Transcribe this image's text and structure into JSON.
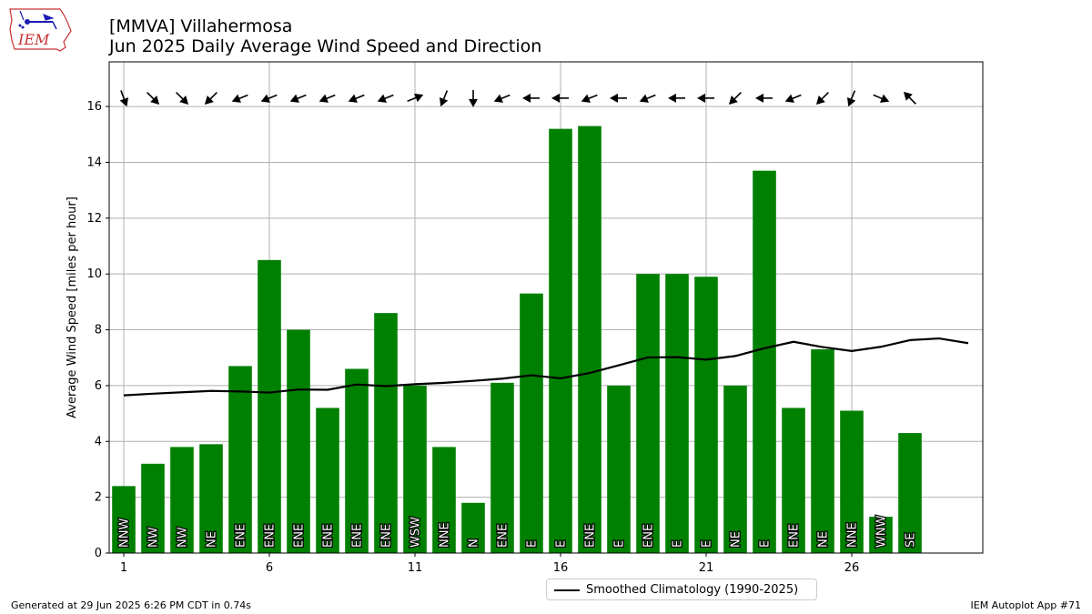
{
  "logo": {
    "text": "IEM"
  },
  "title_line1": "[MMVA] Villahermosa",
  "title_line2": "Jun 2025 Daily Average Wind Speed and Direction",
  "footer_left": "Generated at 29 Jun 2025 6:26 PM CDT in 0.74s",
  "footer_right": "IEM Autoplot App #71",
  "colors": {
    "bar": "#008000",
    "climo": "#000000",
    "grid": "#b0b0b0"
  },
  "chart_data": {
    "type": "bar",
    "ylabel": "Average Wind Speed [miles per hour]",
    "ylim": [
      0,
      17.6
    ],
    "xlim": [
      0.5,
      30.5
    ],
    "yticks": [
      0,
      2,
      4,
      6,
      8,
      10,
      12,
      14,
      16
    ],
    "xticks": [
      1,
      6,
      11,
      16,
      21,
      26
    ],
    "grid": true,
    "legend_placement": "below-center",
    "days": [
      1,
      2,
      3,
      4,
      5,
      6,
      7,
      8,
      9,
      10,
      11,
      12,
      13,
      14,
      15,
      16,
      17,
      18,
      19,
      20,
      21,
      22,
      23,
      24,
      25,
      26,
      27,
      28
    ],
    "values": [
      2.4,
      3.2,
      3.8,
      3.9,
      6.7,
      10.5,
      8.0,
      5.2,
      6.6,
      8.6,
      6.0,
      3.8,
      1.8,
      6.1,
      9.3,
      15.2,
      15.3,
      6.0,
      10.0,
      10.0,
      9.9,
      6.0,
      13.7,
      5.2,
      7.3,
      5.1,
      1.3,
      4.3
    ],
    "direction_labels": [
      "NNW",
      "NW",
      "NW",
      "NE",
      "ENE",
      "ENE",
      "ENE",
      "ENE",
      "ENE",
      "ENE",
      "WSW",
      "NNE",
      "N",
      "ENE",
      "E",
      "E",
      "ENE",
      "E",
      "ENE",
      "E",
      "E",
      "NE",
      "E",
      "ENE",
      "NE",
      "NNE",
      "WNW",
      "SE"
    ],
    "arrow_direction_deg": [
      340,
      315,
      315,
      45,
      68,
      68,
      68,
      68,
      68,
      68,
      248,
      22,
      0,
      68,
      90,
      90,
      68,
      90,
      68,
      90,
      90,
      45,
      90,
      68,
      45,
      22,
      293,
      135
    ],
    "climatology": {
      "name": "Smoothed Climatology (1990-2025)",
      "x": [
        1,
        2,
        3,
        4,
        5,
        6,
        7,
        8,
        9,
        10,
        11,
        12,
        13,
        14,
        15,
        16,
        17,
        18,
        19,
        20,
        21,
        22,
        23,
        24,
        25,
        26,
        27,
        28,
        29,
        30
      ],
      "values": [
        5.65,
        5.71,
        5.76,
        5.81,
        5.79,
        5.75,
        5.86,
        5.85,
        6.04,
        5.98,
        6.05,
        6.1,
        6.17,
        6.25,
        6.37,
        6.26,
        6.45,
        6.73,
        7.01,
        7.02,
        6.93,
        7.06,
        7.34,
        7.57,
        7.38,
        7.24,
        7.39,
        7.63,
        7.69,
        7.52
      ]
    }
  }
}
